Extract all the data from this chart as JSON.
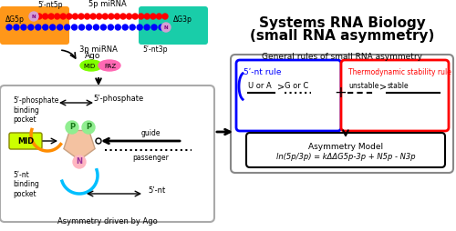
{
  "title_main": "Systems RNA Biology",
  "title_sub": "(small RNA asymmetry)",
  "general_rules_label": "General rules of small RNA asymmetry",
  "nt5_rule_label": "5ʹ-nt rule",
  "thermo_rule_label": "Thermodynamic stability rule",
  "model_eq": "ln(5p/3p) = kΔΔG5p-3p + N5p - N3p",
  "model_label": "Asymmetry Model",
  "ago_label": "Ago",
  "mid_label": "MID",
  "paz_label": "PAZ",
  "asym_label": "Asymmetry driven by Ago",
  "nt5p_label": "5ʹ-nt5p",
  "nt3p_label": "5ʹ-nt3p",
  "mirna5p_label": "5p miRNA",
  "mirna3p_label": "3p miRNA",
  "dG5p_label": "ΔG5p",
  "dG3p_label": "ΔG3p",
  "guide_label": "guide",
  "passenger_label": "passenger",
  "nt5_binding_label": "5ʹ-nt\nbinding\npocket",
  "phos5_binding_label": "5ʹ-phosphate\nbinding\npocket",
  "phos5_label": "5ʹ-phosphate",
  "nt5_label": "5ʹ-nt",
  "unstable_label": "unstable",
  "stable_label": "stable",
  "bg_color": "#ffffff",
  "red_color": "#ff0000",
  "blue_color": "#0000ff",
  "orange_bg": "#ff8c00",
  "teal_bg": "#00c8a0",
  "red_dots": "#ff0000",
  "blue_dots": "#0000ff",
  "mid_box_color": "#ccff00",
  "mid_box_border": "#888800",
  "P_circle_color": "#90ee90",
  "N_circle_color": "#ffb6c1",
  "ago_body_left": "#7fff00",
  "ago_body_right": "#ff69b4",
  "pentagon_color": "#f4c2a1",
  "orange_arc_color": "#ff8c00",
  "cyan_arc_color": "#00bfff"
}
